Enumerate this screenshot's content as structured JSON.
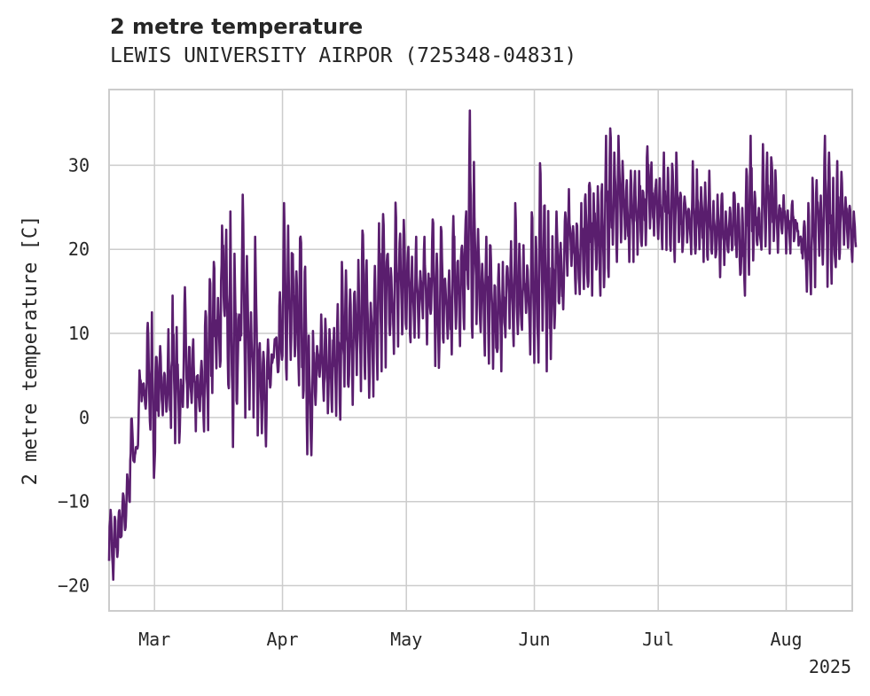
{
  "chart_data": {
    "type": "line",
    "title": "2 metre temperature",
    "subtitle": "LEWIS UNIVERSITY AIRPOR (725348-04831)",
    "ylabel": "2 metre temperature [C]",
    "xlabel": "",
    "year_label": "2025",
    "x_range": [
      "2025-02-18",
      "2025-08-17"
    ],
    "ylim": [
      -23,
      39
    ],
    "y_ticks": [
      -20,
      -10,
      0,
      10,
      20,
      30
    ],
    "x_ticks": [
      {
        "date": "2025-03-01",
        "label": "Mar"
      },
      {
        "date": "2025-04-01",
        "label": "Apr"
      },
      {
        "date": "2025-05-01",
        "label": "May"
      },
      {
        "date": "2025-06-01",
        "label": "Jun"
      },
      {
        "date": "2025-07-01",
        "label": "Jul"
      },
      {
        "date": "2025-08-01",
        "label": "Aug"
      }
    ],
    "grid": true,
    "line_color": "#5a1e6e",
    "series": [
      {
        "name": "",
        "x": [
          "2025-02-18",
          "2025-02-19",
          "2025-02-20",
          "2025-02-21",
          "2025-02-22",
          "2025-02-23",
          "2025-02-24",
          "2025-02-25",
          "2025-02-26",
          "2025-02-27",
          "2025-02-28",
          "2025-03-01",
          "2025-03-02",
          "2025-03-03",
          "2025-03-04",
          "2025-03-05",
          "2025-03-06",
          "2025-03-07",
          "2025-03-08",
          "2025-03-09",
          "2025-03-10",
          "2025-03-11",
          "2025-03-12",
          "2025-03-13",
          "2025-03-14",
          "2025-03-15",
          "2025-03-16",
          "2025-03-17",
          "2025-03-18",
          "2025-03-19",
          "2025-03-20",
          "2025-03-21",
          "2025-03-22",
          "2025-03-23",
          "2025-03-24",
          "2025-03-25",
          "2025-03-26",
          "2025-03-27",
          "2025-03-28",
          "2025-03-29",
          "2025-03-30",
          "2025-03-31",
          "2025-04-01",
          "2025-04-02",
          "2025-04-03",
          "2025-04-04",
          "2025-04-05",
          "2025-04-06",
          "2025-04-07",
          "2025-04-08",
          "2025-04-09",
          "2025-04-10",
          "2025-04-11",
          "2025-04-12",
          "2025-04-13",
          "2025-04-14",
          "2025-04-15",
          "2025-04-16",
          "2025-04-17",
          "2025-04-18",
          "2025-04-19",
          "2025-04-20",
          "2025-04-21",
          "2025-04-22",
          "2025-04-23",
          "2025-04-24",
          "2025-04-25",
          "2025-04-26",
          "2025-04-27",
          "2025-04-28",
          "2025-04-29",
          "2025-04-30",
          "2025-05-01",
          "2025-05-02",
          "2025-05-03",
          "2025-05-04",
          "2025-05-05",
          "2025-05-06",
          "2025-05-07",
          "2025-05-08",
          "2025-05-09",
          "2025-05-10",
          "2025-05-11",
          "2025-05-12",
          "2025-05-13",
          "2025-05-14",
          "2025-05-15",
          "2025-05-16",
          "2025-05-17",
          "2025-05-18",
          "2025-05-19",
          "2025-05-20",
          "2025-05-21",
          "2025-05-22",
          "2025-05-23",
          "2025-05-24",
          "2025-05-25",
          "2025-05-26",
          "2025-05-27",
          "2025-05-28",
          "2025-05-29",
          "2025-05-30",
          "2025-05-31",
          "2025-06-01",
          "2025-06-02",
          "2025-06-03",
          "2025-06-04",
          "2025-06-05",
          "2025-06-06",
          "2025-06-07",
          "2025-06-08",
          "2025-06-09",
          "2025-06-10",
          "2025-06-11",
          "2025-06-12",
          "2025-06-13",
          "2025-06-14",
          "2025-06-15",
          "2025-06-16",
          "2025-06-17",
          "2025-06-18",
          "2025-06-19",
          "2025-06-20",
          "2025-06-21",
          "2025-06-22",
          "2025-06-23",
          "2025-06-24",
          "2025-06-25",
          "2025-06-26",
          "2025-06-27",
          "2025-06-28",
          "2025-06-29",
          "2025-06-30",
          "2025-07-01",
          "2025-07-02",
          "2025-07-03",
          "2025-07-04",
          "2025-07-05",
          "2025-07-06",
          "2025-07-07",
          "2025-07-08",
          "2025-07-09",
          "2025-07-10",
          "2025-07-11",
          "2025-07-12",
          "2025-07-13",
          "2025-07-14",
          "2025-07-15",
          "2025-07-16",
          "2025-07-17",
          "2025-07-18",
          "2025-07-19",
          "2025-07-20",
          "2025-07-21",
          "2025-07-22",
          "2025-07-23",
          "2025-07-24",
          "2025-07-25",
          "2025-07-26",
          "2025-07-27",
          "2025-07-28",
          "2025-07-29",
          "2025-07-30",
          "2025-07-31",
          "2025-08-01",
          "2025-08-02",
          "2025-08-03",
          "2025-08-04",
          "2025-08-05",
          "2025-08-06",
          "2025-08-07",
          "2025-08-08",
          "2025-08-09",
          "2025-08-10",
          "2025-08-11",
          "2025-08-12",
          "2025-08-13",
          "2025-08-14",
          "2025-08-15",
          "2025-08-16",
          "2025-08-17"
        ],
        "min": [
          -16,
          -20,
          -17,
          -15,
          -14,
          -11,
          -5,
          -3,
          2,
          0,
          -3,
          -9,
          -1,
          1,
          0,
          -2,
          -2,
          -3,
          2,
          0,
          1,
          -2,
          0,
          -2,
          -1,
          1,
          5,
          6,
          10,
          1,
          -3,
          2,
          8,
          1,
          0,
          1,
          -1,
          -2,
          -3,
          3,
          8,
          5,
          4,
          5,
          5,
          6,
          2,
          -1,
          -3,
          -4,
          1,
          4,
          2,
          1,
          1,
          2,
          0,
          2,
          2,
          2,
          3,
          3,
          4,
          2,
          3,
          5,
          8,
          6,
          8,
          6,
          8,
          9,
          10,
          8,
          10,
          10,
          12,
          9,
          12,
          8,
          5,
          10,
          9,
          8,
          10,
          9,
          11,
          12,
          10,
          12,
          10,
          8,
          6,
          5,
          6,
          6,
          10,
          12,
          9,
          9,
          10,
          12,
          9,
          8,
          7,
          8,
          6,
          7,
          11,
          12,
          12,
          15,
          18,
          16,
          14,
          16,
          13,
          15,
          16,
          15,
          15,
          17,
          19,
          19,
          20,
          21,
          19,
          20,
          19,
          20,
          21,
          22,
          22,
          21,
          19,
          21,
          20,
          19,
          20,
          19,
          21,
          20,
          18,
          20,
          19,
          19,
          18,
          18,
          17,
          18,
          19,
          19,
          18,
          16,
          15,
          17,
          19,
          20,
          19,
          20,
          20,
          21,
          20,
          21,
          20,
          20,
          21,
          21,
          19,
          16,
          14,
          16,
          18,
          18,
          17,
          16,
          17,
          18,
          20,
          21,
          19,
          20,
          20,
          19,
          20,
          21
        ],
        "max": [
          -10,
          -12,
          -11,
          -9,
          -6,
          1,
          -4,
          6,
          4,
          13,
          12,
          10,
          8,
          6,
          10,
          14,
          11,
          4,
          15,
          9,
          10,
          6,
          8,
          14,
          19,
          18,
          16,
          26,
          22,
          24,
          19,
          14,
          26,
          20,
          12,
          21,
          10,
          8,
          9,
          7,
          10,
          15,
          25,
          23,
          22,
          18,
          25,
          20,
          10,
          10,
          8,
          12,
          14,
          10,
          11,
          13,
          18,
          17,
          15,
          18,
          19,
          25,
          19,
          16,
          21,
          24,
          27,
          22,
          19,
          26,
          24,
          23,
          22,
          19,
          21,
          18,
          21,
          18,
          26,
          19,
          23,
          18,
          17,
          25,
          20,
          23,
          26,
          36,
          31,
          22,
          19,
          21,
          23,
          17,
          18,
          18,
          20,
          21,
          25,
          22,
          20,
          19,
          25,
          21,
          32,
          27,
          25,
          22,
          24,
          23,
          26,
          27,
          23,
          24,
          25,
          29,
          30,
          27,
          28,
          29,
          33,
          34,
          32,
          33,
          30,
          28,
          29,
          31,
          30,
          28,
          33,
          30,
          29,
          28,
          31,
          30,
          32,
          31,
          27,
          28,
          25,
          31,
          29,
          28,
          28,
          29,
          27,
          26,
          28,
          24,
          25,
          28,
          27,
          25,
          30,
          33,
          27,
          25,
          32,
          31,
          32,
          30,
          26,
          27,
          25,
          26,
          24,
          22,
          24,
          25,
          28,
          29,
          27,
          33,
          31,
          28,
          30,
          32,
          27,
          26,
          24
        ]
      }
    ]
  }
}
